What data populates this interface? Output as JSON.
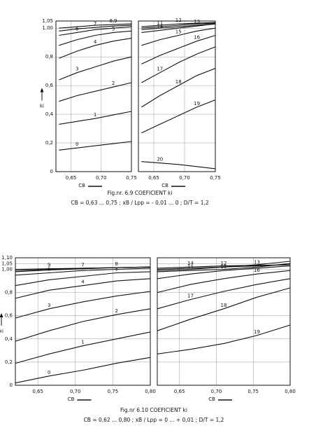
{
  "chart_data": [
    {
      "type": "line",
      "xlabel": "CB",
      "ylabel": "ki",
      "x": [
        0.63,
        0.66,
        0.69,
        0.72,
        0.75
      ],
      "xlim": [
        0.625,
        0.75
      ],
      "xticks": [
        {
          "value": 0.65,
          "label": "0,65"
        },
        {
          "value": 0.7,
          "label": "0,70"
        },
        {
          "value": 0.75,
          "label": "0,75"
        }
      ],
      "ylim": [
        0,
        1.05
      ],
      "yticks": [
        0,
        {
          "value": 0.2,
          "label": "0,2"
        },
        {
          "value": 0.4,
          "label": "0,4"
        },
        {
          "value": 0.6,
          "label": "0,6"
        },
        {
          "value": 0.8,
          "label": "0,8"
        },
        {
          "value": 1.0,
          "label": "1,00"
        },
        {
          "value": 1.05,
          "label": "1,05"
        }
      ],
      "grid": true,
      "series": [
        {
          "name": "0",
          "color": "#111111",
          "values": [
            0.15,
            0.165,
            0.18,
            0.195,
            0.21
          ]
        },
        {
          "name": "1",
          "color": "#111111",
          "values": [
            0.33,
            0.35,
            0.37,
            0.395,
            0.42
          ]
        },
        {
          "name": "2",
          "color": "#111111",
          "values": [
            0.49,
            0.53,
            0.56,
            0.59,
            0.62
          ]
        },
        {
          "name": "3",
          "color": "#111111",
          "values": [
            0.64,
            0.69,
            0.73,
            0.77,
            0.8
          ]
        },
        {
          "name": "4",
          "color": "#111111",
          "values": [
            0.79,
            0.84,
            0.88,
            0.91,
            0.93
          ]
        },
        {
          "name": "5",
          "color": "#111111",
          "values": [
            0.88,
            0.92,
            0.95,
            0.97,
            0.98
          ]
        },
        {
          "name": "6",
          "color": "#111111",
          "values": [
            0.95,
            0.97,
            0.99,
            1.0,
            1.01
          ]
        },
        {
          "name": "7",
          "color": "#111111",
          "values": [
            0.98,
            0.995,
            1.005,
            1.015,
            1.02
          ]
        },
        {
          "name": "8,9",
          "color": "#111111",
          "values": [
            1.0,
            1.01,
            1.02,
            1.025,
            1.03
          ]
        }
      ]
    },
    {
      "type": "line",
      "xlabel": "CB",
      "x": [
        0.63,
        0.66,
        0.69,
        0.72,
        0.75
      ],
      "xlim": [
        0.625,
        0.75
      ],
      "xticks": [
        {
          "value": 0.65,
          "label": "0,65"
        },
        {
          "value": 0.7,
          "label": "0,70"
        },
        {
          "value": 0.75,
          "label": "0,75"
        }
      ],
      "ylim": [
        0,
        1.05
      ],
      "grid": true,
      "series": [
        {
          "name": "11",
          "color": "#111111",
          "values": [
            1.0,
            1.01,
            1.02,
            1.03,
            1.035
          ]
        },
        {
          "name": "12",
          "color": "#111111",
          "values": [
            1.01,
            1.02,
            1.03,
            1.035,
            1.04
          ]
        },
        {
          "name": "13",
          "color": "#111111",
          "values": [
            0.99,
            1.0,
            1.01,
            1.02,
            1.03
          ]
        },
        {
          "name": "14",
          "color": "#111111",
          "values": [
            0.97,
            0.985,
            1.0,
            1.015,
            1.03
          ]
        },
        {
          "name": "15",
          "color": "#111111",
          "values": [
            0.88,
            0.92,
            0.95,
            0.98,
            1.0
          ]
        },
        {
          "name": "16",
          "color": "#111111",
          "values": [
            0.75,
            0.81,
            0.86,
            0.91,
            0.95
          ]
        },
        {
          "name": "17",
          "color": "#111111",
          "values": [
            0.62,
            0.69,
            0.76,
            0.82,
            0.87
          ]
        },
        {
          "name": "18",
          "color": "#111111",
          "values": [
            0.45,
            0.53,
            0.6,
            0.67,
            0.72
          ]
        },
        {
          "name": "19",
          "color": "#111111",
          "values": [
            0.27,
            0.33,
            0.39,
            0.45,
            0.5
          ]
        },
        {
          "name": "20",
          "color": "#111111",
          "values": [
            0.07,
            0.06,
            0.05,
            0.035,
            0.02
          ]
        }
      ]
    },
    {
      "type": "line",
      "xlabel": "CB",
      "ylabel": "ki",
      "x": [
        0.62,
        0.665,
        0.71,
        0.755,
        0.8
      ],
      "xlim": [
        0.62,
        0.8
      ],
      "xticks": [
        {
          "value": 0.65,
          "label": "0,65"
        },
        {
          "value": 0.7,
          "label": "0,70"
        },
        {
          "value": 0.75,
          "label": "0,75"
        },
        {
          "value": 0.8,
          "label": "0,80"
        }
      ],
      "ylim": [
        0,
        1.1
      ],
      "yticks": [
        0,
        {
          "value": 0.2,
          "label": "0,2"
        },
        {
          "value": 0.4,
          "label": "0,4"
        },
        {
          "value": 0.6,
          "label": "0,6"
        },
        {
          "value": 0.8,
          "label": "0,8"
        },
        {
          "value": 1.0,
          "label": "1,00"
        },
        {
          "value": 1.05,
          "label": "1,05"
        },
        {
          "value": 1.1,
          "label": "1,10"
        }
      ],
      "grid": true,
      "series": [
        {
          "name": "0",
          "color": "#111111",
          "values": [
            0.02,
            0.08,
            0.13,
            0.19,
            0.24
          ]
        },
        {
          "name": "1",
          "color": "#111111",
          "values": [
            0.19,
            0.27,
            0.34,
            0.4,
            0.46
          ]
        },
        {
          "name": "2",
          "color": "#111111",
          "values": [
            0.38,
            0.47,
            0.55,
            0.61,
            0.66
          ]
        },
        {
          "name": "3",
          "color": "#111111",
          "values": [
            0.58,
            0.66,
            0.72,
            0.77,
            0.81
          ]
        },
        {
          "name": "4",
          "color": "#111111",
          "values": [
            0.75,
            0.82,
            0.86,
            0.9,
            0.92
          ]
        },
        {
          "name": "5",
          "color": "#111111",
          "values": [
            0.86,
            0.91,
            0.94,
            0.97,
            0.98
          ]
        },
        {
          "name": "6",
          "color": "#111111",
          "values": [
            0.95,
            0.97,
            0.99,
            1.0,
            1.01
          ]
        },
        {
          "name": "7",
          "color": "#111111",
          "values": [
            0.98,
            0.995,
            1.005,
            1.015,
            1.02
          ]
        },
        {
          "name": "8",
          "color": "#111111",
          "values": [
            0.99,
            1.0,
            1.01,
            1.015,
            1.02
          ]
        },
        {
          "name": "9",
          "color": "#111111",
          "values": [
            1.0,
            1.005,
            1.01,
            1.015,
            1.02
          ]
        }
      ]
    },
    {
      "type": "line",
      "xlabel": "CB",
      "x": [
        0.62,
        0.665,
        0.71,
        0.755,
        0.8
      ],
      "xlim": [
        0.62,
        0.8
      ],
      "xticks": [
        {
          "value": 0.65,
          "label": "0,65"
        },
        {
          "value": 0.7,
          "label": "0,70"
        },
        {
          "value": 0.75,
          "label": "0,75"
        },
        {
          "value": 0.8,
          "label": "0,80"
        }
      ],
      "ylim": [
        0,
        1.1
      ],
      "grid": true,
      "series": [
        {
          "name": "11",
          "color": "#111111",
          "values": [
            0.98,
            0.99,
            1.0,
            1.02,
            1.05
          ]
        },
        {
          "name": "12",
          "color": "#111111",
          "values": [
            0.99,
            1.0,
            1.02,
            1.04,
            1.07
          ]
        },
        {
          "name": "13",
          "color": "#111111",
          "values": [
            1.0,
            1.01,
            1.02,
            1.03,
            1.04
          ]
        },
        {
          "name": "14",
          "color": "#111111",
          "values": [
            1.01,
            1.02,
            1.03,
            1.035,
            1.04
          ]
        },
        {
          "name": "15",
          "color": "#111111",
          "values": [
            0.92,
            0.96,
            0.99,
            1.01,
            1.03
          ]
        },
        {
          "name": "16",
          "color": "#111111",
          "values": [
            0.8,
            0.87,
            0.92,
            0.96,
            0.99
          ]
        },
        {
          "name": "17",
          "color": "#111111",
          "values": [
            0.66,
            0.74,
            0.81,
            0.87,
            0.92
          ]
        },
        {
          "name": "18",
          "color": "#111111",
          "values": [
            0.47,
            0.57,
            0.66,
            0.76,
            0.84
          ]
        },
        {
          "name": "19",
          "color": "#111111",
          "values": [
            0.27,
            0.31,
            0.36,
            0.43,
            0.52
          ]
        }
      ]
    }
  ],
  "figures": [
    {
      "title": "Fig.nr. 6.9    COEFICIENT ki",
      "subtitle": "CB = 0,63 ... 0,75 ;  xB / Lpp = - 0,01 ... 0 ;  D/T = 1,2"
    },
    {
      "title": "Fig.nr 6.10    COEFICIENT ki",
      "subtitle": "CB = 0,62 ... 0,80 ;  xB / Lpp = 0 ... + 0,01 ;  D/T = 1,2"
    }
  ]
}
